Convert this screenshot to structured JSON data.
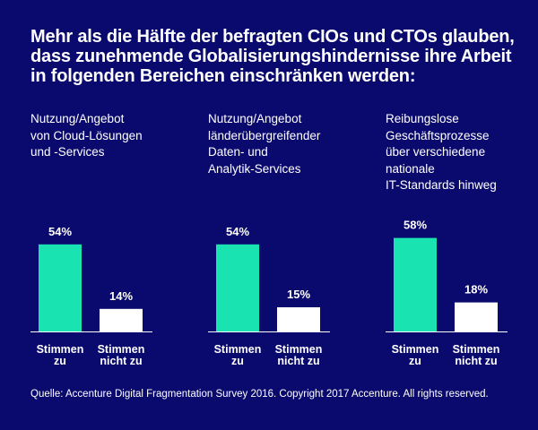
{
  "title_lines": [
    "Mehr als die Hälfte der befragten CIOs und CTOs glauben,",
    "dass zunehmende Globalisierungshindernisse ihre Arbeit",
    "in folgenden Bereichen einschränken werden:"
  ],
  "source": "Quelle: Accenture Digital Fragmentation Survey 2016. Copyright 2017 Accenture. All rights reserved.",
  "colors": {
    "background": "#0a0a6e",
    "agree": "#19e3b1",
    "disagree": "#ffffff"
  },
  "chart_data": [
    {
      "type": "bar",
      "title_lines": [
        "Nutzung/Angebot",
        "von Cloud-Lösungen",
        "und -Services"
      ],
      "categories": [
        [
          "Stimmen",
          "zu"
        ],
        [
          "Stimmen",
          "nicht zu"
        ]
      ],
      "values": [
        54,
        14
      ],
      "value_labels": [
        "54%",
        "14%"
      ],
      "ylim": [
        0,
        100
      ]
    },
    {
      "type": "bar",
      "title_lines": [
        "Nutzung/Angebot",
        "länderübergreifender",
        "Daten- und",
        "Analytik-Services"
      ],
      "categories": [
        [
          "Stimmen",
          "zu"
        ],
        [
          "Stimmen",
          "nicht zu"
        ]
      ],
      "values": [
        54,
        15
      ],
      "value_labels": [
        "54%",
        "15%"
      ],
      "ylim": [
        0,
        100
      ]
    },
    {
      "type": "bar",
      "title_lines": [
        "Reibungslose",
        "Geschäftsprozesse",
        "über verschiedene",
        "nationale",
        "IT-Standards hinweg"
      ],
      "categories": [
        [
          "Stimmen",
          "zu"
        ],
        [
          "Stimmen",
          "nicht zu"
        ]
      ],
      "values": [
        58,
        18
      ],
      "value_labels": [
        "58%",
        "18%"
      ],
      "ylim": [
        0,
        100
      ]
    }
  ]
}
